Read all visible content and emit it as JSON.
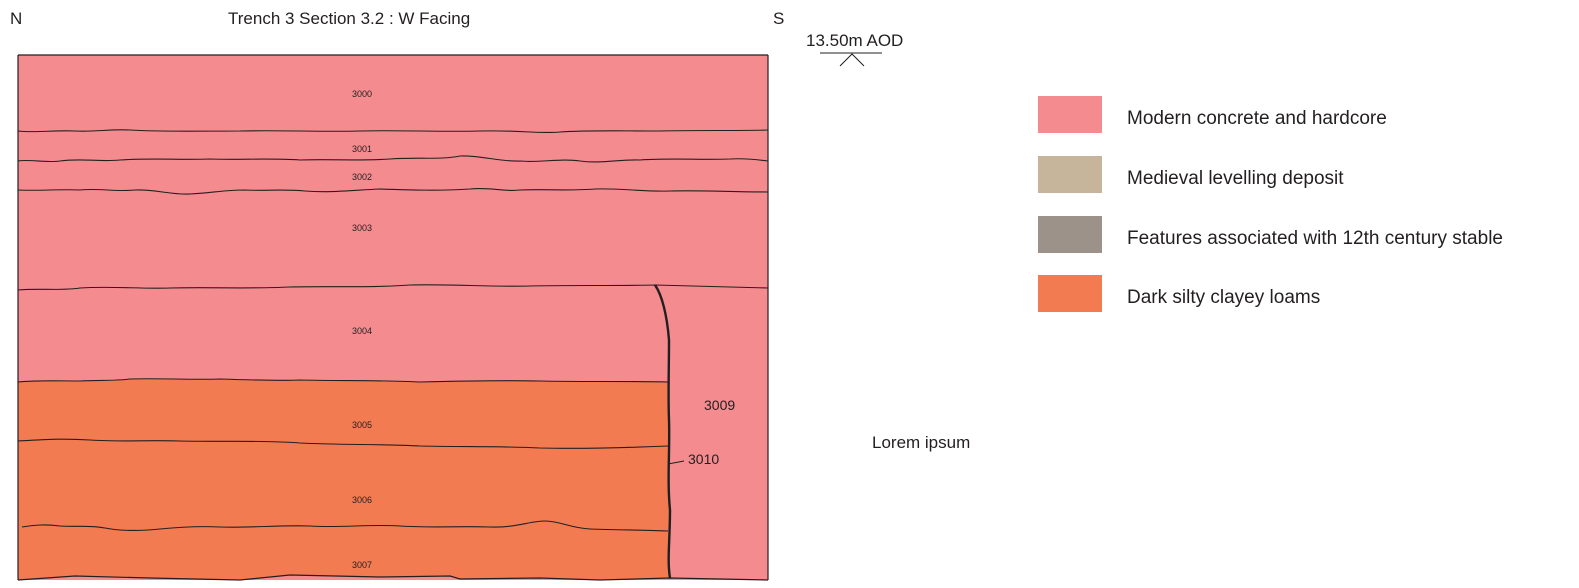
{
  "header": {
    "north": "N",
    "south": "S",
    "title": "Trench 3 Section  3.2 : W Facing",
    "level": "13.50m AOD"
  },
  "note": "Lorem ipsum",
  "colors": {
    "modern": "#f48b8f",
    "medieval": "#c6b59b",
    "stable": "#9d928a",
    "loam": "#f37b52",
    "line": "#231f20"
  },
  "layers": {
    "l3000": "3000",
    "l3001": "3001",
    "l3002": "3002",
    "l3003": "3003",
    "l3004": "3004",
    "l3005": "3005",
    "l3006": "3006",
    "l3007": "3007",
    "l3009": "3009",
    "l3010": "3010"
  },
  "legend": [
    {
      "label": "Modern concrete and hardcore",
      "color": "#f48b8f"
    },
    {
      "label": "Medieval levelling deposit",
      "color": "#c6b59b"
    },
    {
      "label": "Features associated with 12th century stable",
      "color": "#9d928a"
    },
    {
      "label": "Dark silty clayey loams",
      "color": "#f37b52"
    }
  ]
}
